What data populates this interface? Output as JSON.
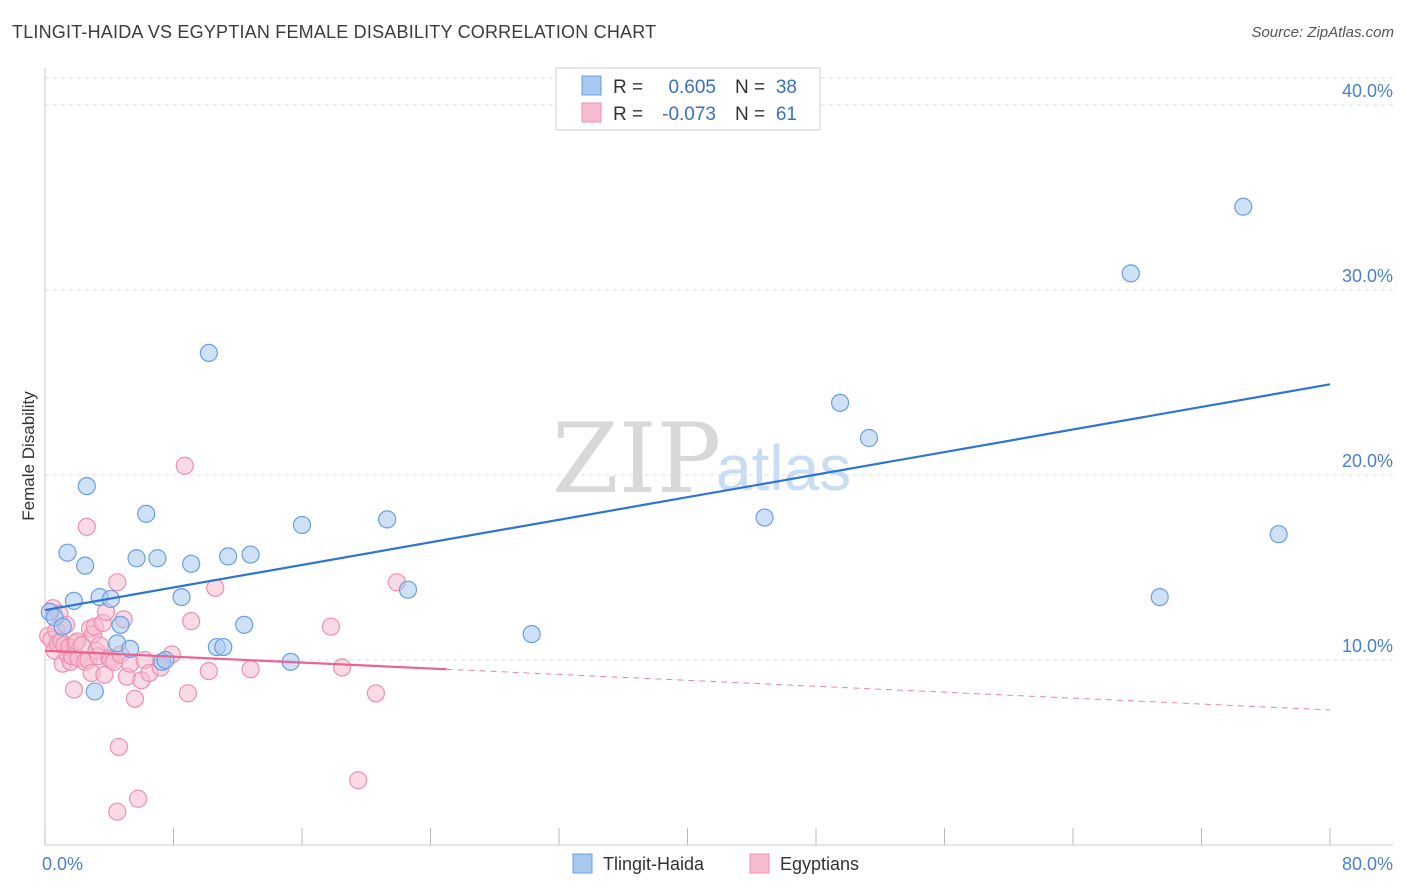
{
  "header": {
    "title": "TLINGIT-HAIDA VS EGYPTIAN FEMALE DISABILITY CORRELATION CHART",
    "source": "Source: ZipAtlas.com"
  },
  "watermark": {
    "zip": "ZIP",
    "atlas": "atlas"
  },
  "colors": {
    "blue_fill": "#a8c8f0",
    "blue_stroke": "#6a9fe0",
    "blue_line": "#2f74d0",
    "pink_fill": "#f6bcd0",
    "pink_stroke": "#ee8fb0",
    "pink_line": "#e8658f",
    "grid": "#dddddd",
    "axis": "#cccccc"
  },
  "legend": {
    "rows": [
      {
        "series": "blue",
        "r_label": "R =",
        "r_value": "0.605",
        "n_label": "N =",
        "n_value": "38"
      },
      {
        "series": "pink",
        "r_label": "R =",
        "r_value": "-0.073",
        "n_label": "N =",
        "n_value": "61"
      }
    ]
  },
  "chart_data": {
    "type": "scatter",
    "title": "TLINGIT-HAIDA VS EGYPTIAN FEMALE DISABILITY CORRELATION CHART",
    "xlabel": "",
    "ylabel": "Female Disability",
    "xlim": [
      0,
      80
    ],
    "ylim": [
      0,
      42
    ],
    "x_tick_labels": [
      {
        "value": 0,
        "label": "0.0%"
      },
      {
        "value": 80,
        "label": "80.0%"
      }
    ],
    "y_tick_labels": [
      {
        "value": 10,
        "label": "10.0%"
      },
      {
        "value": 20,
        "label": "20.0%"
      },
      {
        "value": 30,
        "label": "30.0%"
      },
      {
        "value": 40,
        "label": "40.0%"
      }
    ],
    "series": [
      {
        "name": "Tlingit-Haida",
        "color": "blue",
        "R": 0.605,
        "N": 38,
        "trend": {
          "x0": 0,
          "y0": 12.7,
          "x1": 80,
          "y1": 24.9
        },
        "points": [
          [
            0.3,
            12.6
          ],
          [
            0.6,
            12.3
          ],
          [
            1.1,
            11.8
          ],
          [
            1.4,
            15.8
          ],
          [
            1.8,
            13.2
          ],
          [
            2.5,
            15.1
          ],
          [
            2.6,
            19.4
          ],
          [
            3.1,
            8.3
          ],
          [
            3.4,
            13.4
          ],
          [
            4.1,
            13.3
          ],
          [
            4.5,
            10.9
          ],
          [
            4.7,
            11.9
          ],
          [
            5.3,
            10.6
          ],
          [
            5.7,
            15.5
          ],
          [
            6.3,
            17.9
          ],
          [
            7.0,
            15.5
          ],
          [
            7.3,
            9.9
          ],
          [
            7.5,
            10.0
          ],
          [
            8.5,
            13.4
          ],
          [
            9.1,
            15.2
          ],
          [
            10.2,
            26.6
          ],
          [
            10.7,
            10.7
          ],
          [
            11.1,
            10.7
          ],
          [
            11.4,
            15.6
          ],
          [
            12.4,
            11.9
          ],
          [
            12.8,
            15.7
          ],
          [
            15.3,
            9.9
          ],
          [
            16.0,
            17.3
          ],
          [
            21.3,
            17.6
          ],
          [
            22.6,
            13.8
          ],
          [
            30.3,
            11.4
          ],
          [
            44.8,
            17.7
          ],
          [
            49.5,
            23.9
          ],
          [
            51.3,
            22.0
          ],
          [
            67.6,
            30.9
          ],
          [
            69.4,
            13.4
          ],
          [
            74.6,
            34.5
          ],
          [
            76.8,
            16.8
          ]
        ]
      },
      {
        "name": "Egyptians",
        "color": "pink",
        "R": -0.073,
        "N": 61,
        "trend": {
          "x0": 0,
          "y0": 10.5,
          "x1": 25,
          "y1": 9.5
        },
        "trend_dashed": {
          "x0": 25,
          "y0": 9.5,
          "x1": 80,
          "y1": 7.3
        },
        "points": [
          [
            0.2,
            11.3
          ],
          [
            0.4,
            11.1
          ],
          [
            0.5,
            12.8
          ],
          [
            0.6,
            10.5
          ],
          [
            0.7,
            11.6
          ],
          [
            0.8,
            10.9
          ],
          [
            0.9,
            12.5
          ],
          [
            1.0,
            11.0
          ],
          [
            1.1,
            9.8
          ],
          [
            1.2,
            10.8
          ],
          [
            1.3,
            11.9
          ],
          [
            1.4,
            10.3
          ],
          [
            1.5,
            10.7
          ],
          [
            1.6,
            9.9
          ],
          [
            1.7,
            10.2
          ],
          [
            1.8,
            8.4
          ],
          [
            1.9,
            10.9
          ],
          [
            2.0,
            11.0
          ],
          [
            2.1,
            10.1
          ],
          [
            2.3,
            10.8
          ],
          [
            2.5,
            9.9
          ],
          [
            2.6,
            17.2
          ],
          [
            2.7,
            10.0
          ],
          [
            2.8,
            11.7
          ],
          [
            2.9,
            9.3
          ],
          [
            3.0,
            11.4
          ],
          [
            3.1,
            11.8
          ],
          [
            3.2,
            10.5
          ],
          [
            3.3,
            10.2
          ],
          [
            3.4,
            10.8
          ],
          [
            3.6,
            12.0
          ],
          [
            3.7,
            9.2
          ],
          [
            3.8,
            12.6
          ],
          [
            4.0,
            10.1
          ],
          [
            4.1,
            10.0
          ],
          [
            4.3,
            9.9
          ],
          [
            4.5,
            14.2
          ],
          [
            4.6,
            5.3
          ],
          [
            4.7,
            10.3
          ],
          [
            4.9,
            12.2
          ],
          [
            5.1,
            9.1
          ],
          [
            5.3,
            9.8
          ],
          [
            5.6,
            7.9
          ],
          [
            5.8,
            2.5
          ],
          [
            6.0,
            8.9
          ],
          [
            6.2,
            10.0
          ],
          [
            6.5,
            9.3
          ],
          [
            7.2,
            9.6
          ],
          [
            7.9,
            10.3
          ],
          [
            8.7,
            20.5
          ],
          [
            8.9,
            8.2
          ],
          [
            9.1,
            12.1
          ],
          [
            10.2,
            9.4
          ],
          [
            10.6,
            13.9
          ],
          [
            12.8,
            9.5
          ],
          [
            17.8,
            11.8
          ],
          [
            18.5,
            9.6
          ],
          [
            19.5,
            3.5
          ],
          [
            20.6,
            8.2
          ],
          [
            21.9,
            14.2
          ],
          [
            4.5,
            1.8
          ]
        ]
      }
    ]
  },
  "bottom_legend": [
    {
      "series": "blue",
      "label": "Tlingit-Haida"
    },
    {
      "series": "pink",
      "label": "Egyptians"
    }
  ]
}
